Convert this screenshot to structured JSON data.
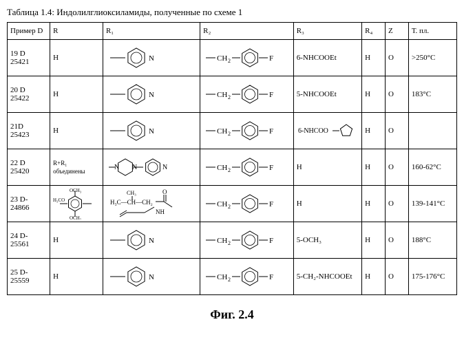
{
  "caption": "Таблица 1.4: Индолилглиоксиламиды, полученные по схеме 1",
  "figure_label": "Фиг. 2.4",
  "headers": {
    "ex": "Пример D",
    "r": "R",
    "r1": "R₁",
    "r2": "R₂",
    "r3": "R₃",
    "r4": "R₄",
    "z": "Z",
    "t": "Т. пл."
  },
  "rows": [
    {
      "ex_top": "19 D",
      "ex_bot": "25421",
      "r": "H",
      "r1_type": "pyridyl",
      "r2_type": "ch2phF",
      "r3": "6-NHCOOEt",
      "r4": "H",
      "z": "O",
      "t": ">250°C"
    },
    {
      "ex_top": "20 D",
      "ex_bot": "25422",
      "r": "H",
      "r1_type": "pyridyl",
      "r2_type": "ch2phF",
      "r3": "5-NHCOOEt",
      "r4": "H",
      "z": "O",
      "t": "183°C"
    },
    {
      "ex_top": "21D",
      "ex_bot": "25423",
      "r": "H",
      "r1_type": "pyridyl",
      "r2_type": "ch2phF",
      "r3": "6-NHCOO-cyclopent",
      "r4": "H",
      "z": "O",
      "t": ""
    },
    {
      "ex_top": "22 D",
      "ex_bot": "25420",
      "r": "R+R₁ объединены",
      "r1_type": "piperidinyl-pyridyl",
      "r2_type": "ch2phF",
      "r3": "H",
      "r4": "H",
      "z": "O",
      "t": "160-62°C"
    },
    {
      "ex_top": "23 D-",
      "ex_bot": "24866",
      "r_type": "trimethoxy",
      "r1_type": "amide-chain",
      "r2_type": "ch2phF",
      "r3": "H",
      "r4": "H",
      "z": "O",
      "t": "139-141°C"
    },
    {
      "ex_top": "24 D-",
      "ex_bot": "25561",
      "r": "H",
      "r1_type": "pyridyl",
      "r2_type": "ch2phF",
      "r3": "5-OCH₃",
      "r4": "H",
      "z": "O",
      "t": "188°C"
    },
    {
      "ex_top": "25 D-",
      "ex_bot": "25559",
      "r": "H",
      "r1_type": "pyridyl",
      "r2_type": "ch2phF",
      "r3": "5-CH₂-NHCOOEt",
      "r4": "H",
      "z": "O",
      "t": "175-176°C"
    }
  ],
  "colors": {
    "stroke": "#000000",
    "bg": "#ffffff"
  }
}
